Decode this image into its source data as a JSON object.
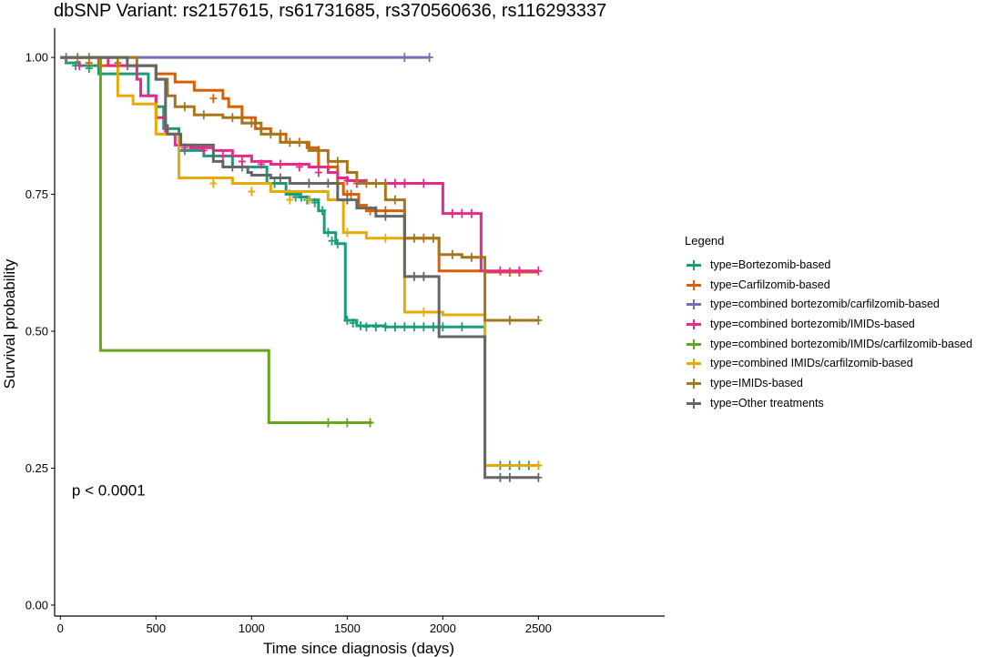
{
  "chart_data": {
    "type": "line",
    "subtype": "kaplan-meier step curves with censor marks",
    "title": "dbSNP Variant: rs2157615, rs61731685, rs370560636, rs116293337",
    "xlabel": "Time since diagnosis (days)",
    "ylabel": "Survival probability",
    "xlim": [
      -30,
      3160
    ],
    "ylim": [
      -0.02,
      1.04
    ],
    "x_ticks": [
      0,
      500,
      1000,
      1500,
      2000,
      2500
    ],
    "x_tick_labels": [
      "0",
      "500",
      "1000",
      "1500",
      "2000",
      "2500"
    ],
    "y_ticks": [
      0,
      0.25,
      0.5,
      0.75,
      1.0
    ],
    "y_tick_labels": [
      "0.00",
      "0.25",
      "0.50",
      "0.75",
      "1.00"
    ],
    "grid": false,
    "annotation": {
      "text": "p < 0.0001",
      "x": 60,
      "y": 0.2
    },
    "legend": {
      "title": "Legend",
      "position": "right"
    },
    "series": [
      {
        "name": "type=Bortezomib-based",
        "color": "#1B9E77",
        "steps": [
          [
            0,
            1.0
          ],
          [
            30,
            0.99
          ],
          [
            100,
            0.985
          ],
          [
            200,
            0.97
          ],
          [
            460,
            0.93
          ],
          [
            500,
            0.91
          ],
          [
            540,
            0.87
          ],
          [
            620,
            0.83
          ],
          [
            750,
            0.82
          ],
          [
            900,
            0.8
          ],
          [
            1080,
            0.77
          ],
          [
            1180,
            0.75
          ],
          [
            1250,
            0.745
          ],
          [
            1300,
            0.74
          ],
          [
            1350,
            0.72
          ],
          [
            1380,
            0.68
          ],
          [
            1440,
            0.66
          ],
          [
            1490,
            0.52
          ],
          [
            1550,
            0.51
          ],
          [
            1700,
            0.508
          ],
          [
            2220,
            0.255
          ]
        ],
        "censor": [
          [
            80,
            0.985
          ],
          [
            150,
            0.98
          ],
          [
            560,
            0.87
          ],
          [
            650,
            0.83
          ],
          [
            800,
            0.82
          ],
          [
            950,
            0.8
          ],
          [
            1120,
            0.77
          ],
          [
            1200,
            0.75
          ],
          [
            1230,
            0.745
          ],
          [
            1260,
            0.745
          ],
          [
            1290,
            0.74
          ],
          [
            1330,
            0.735
          ],
          [
            1370,
            0.72
          ],
          [
            1400,
            0.68
          ],
          [
            1420,
            0.665
          ],
          [
            1450,
            0.66
          ],
          [
            1500,
            0.52
          ],
          [
            1530,
            0.515
          ],
          [
            1570,
            0.51
          ],
          [
            1600,
            0.508
          ],
          [
            1650,
            0.508
          ],
          [
            1700,
            0.508
          ],
          [
            1750,
            0.508
          ],
          [
            1800,
            0.508
          ],
          [
            1850,
            0.508
          ],
          [
            1900,
            0.508
          ],
          [
            1950,
            0.508
          ],
          [
            2000,
            0.508
          ],
          [
            2100,
            0.508
          ],
          [
            2300,
            0.255
          ],
          [
            2350,
            0.255
          ],
          [
            2400,
            0.255
          ],
          [
            2450,
            0.255
          ],
          [
            2500,
            0.255
          ]
        ],
        "end": 2500
      },
      {
        "name": "type=Carfilzomib-based",
        "color": "#D95F02",
        "steps": [
          [
            0,
            1.0
          ],
          [
            200,
            0.985
          ],
          [
            500,
            0.97
          ],
          [
            600,
            0.955
          ],
          [
            700,
            0.94
          ],
          [
            850,
            0.925
          ],
          [
            880,
            0.91
          ],
          [
            950,
            0.89
          ],
          [
            1020,
            0.87
          ],
          [
            1100,
            0.86
          ],
          [
            1180,
            0.845
          ],
          [
            1290,
            0.835
          ],
          [
            1350,
            0.8
          ],
          [
            1450,
            0.77
          ],
          [
            1480,
            0.75
          ],
          [
            1560,
            0.73
          ],
          [
            1600,
            0.72
          ],
          [
            1800,
            0.67
          ],
          [
            1980,
            0.61
          ],
          [
            2220,
            0.608
          ]
        ],
        "censor": [
          [
            90,
            1.0
          ],
          [
            150,
            0.99
          ],
          [
            800,
            0.925
          ],
          [
            1050,
            0.87
          ],
          [
            1150,
            0.86
          ],
          [
            1250,
            0.845
          ],
          [
            1400,
            0.8
          ],
          [
            1500,
            0.75
          ],
          [
            1520,
            0.75
          ],
          [
            1620,
            0.72
          ],
          [
            1650,
            0.72
          ],
          [
            1700,
            0.72
          ],
          [
            1900,
            0.67
          ],
          [
            2350,
            0.608
          ],
          [
            2400,
            0.608
          ]
        ],
        "end": 2500
      },
      {
        "name": "type=combined bortezomib/carfilzomib-based",
        "color": "#7570B3",
        "steps": [
          [
            0,
            1.0
          ]
        ],
        "censor": [
          [
            30,
            1.0
          ],
          [
            1800,
            1.0
          ],
          [
            1930,
            1.0
          ]
        ],
        "end": 1930
      },
      {
        "name": "type=combined bortezomib/IMIDs-based",
        "color": "#E7298A",
        "steps": [
          [
            0,
            1.0
          ],
          [
            250,
            0.985
          ],
          [
            400,
            0.96
          ],
          [
            420,
            0.93
          ],
          [
            500,
            0.89
          ],
          [
            550,
            0.86
          ],
          [
            600,
            0.84
          ],
          [
            680,
            0.835
          ],
          [
            800,
            0.83
          ],
          [
            900,
            0.82
          ],
          [
            1000,
            0.81
          ],
          [
            1100,
            0.805
          ],
          [
            1300,
            0.8
          ],
          [
            1400,
            0.79
          ],
          [
            1450,
            0.78
          ],
          [
            1500,
            0.775
          ],
          [
            1600,
            0.77
          ],
          [
            2000,
            0.715
          ],
          [
            2200,
            0.61
          ]
        ],
        "censor": [
          [
            100,
            0.985
          ],
          [
            350,
            0.985
          ],
          [
            650,
            0.835
          ],
          [
            750,
            0.83
          ],
          [
            850,
            0.82
          ],
          [
            950,
            0.81
          ],
          [
            1050,
            0.805
          ],
          [
            1150,
            0.805
          ],
          [
            1250,
            0.8
          ],
          [
            1350,
            0.79
          ],
          [
            1500,
            0.775
          ],
          [
            1550,
            0.77
          ],
          [
            1650,
            0.77
          ],
          [
            1700,
            0.77
          ],
          [
            1750,
            0.77
          ],
          [
            1800,
            0.77
          ],
          [
            1900,
            0.77
          ],
          [
            2050,
            0.715
          ],
          [
            2100,
            0.715
          ],
          [
            2150,
            0.715
          ],
          [
            2300,
            0.61
          ],
          [
            2400,
            0.61
          ],
          [
            2500,
            0.61
          ]
        ],
        "end": 2500
      },
      {
        "name": "type=combined bortezomib/IMIDs/carfilzomib-based",
        "color": "#66A61E",
        "steps": [
          [
            0,
            1.0
          ],
          [
            210,
            0.465
          ],
          [
            1090,
            0.333
          ]
        ],
        "censor": [
          [
            1400,
            0.333
          ],
          [
            1500,
            0.333
          ],
          [
            1620,
            0.333
          ]
        ],
        "end": 1630
      },
      {
        "name": "type=combined IMIDs/carfilzomib-based",
        "color": "#E6AB02",
        "steps": [
          [
            0,
            1.0
          ],
          [
            300,
            0.93
          ],
          [
            380,
            0.915
          ],
          [
            500,
            0.86
          ],
          [
            620,
            0.78
          ],
          [
            900,
            0.77
          ],
          [
            1100,
            0.755
          ],
          [
            1400,
            0.74
          ],
          [
            1480,
            0.68
          ],
          [
            1600,
            0.67
          ],
          [
            1800,
            0.535
          ],
          [
            2000,
            0.53
          ],
          [
            2220,
            0.255
          ]
        ],
        "censor": [
          [
            800,
            0.77
          ],
          [
            1000,
            0.755
          ],
          [
            1200,
            0.74
          ],
          [
            1300,
            0.74
          ],
          [
            1500,
            0.68
          ],
          [
            1700,
            0.67
          ],
          [
            1900,
            0.535
          ],
          [
            2500,
            0.255
          ]
        ],
        "end": 2500
      },
      {
        "name": "type=IMIDs-based",
        "color": "#A6761D",
        "steps": [
          [
            0,
            1.0
          ],
          [
            400,
            0.985
          ],
          [
            500,
            0.96
          ],
          [
            560,
            0.93
          ],
          [
            600,
            0.91
          ],
          [
            700,
            0.895
          ],
          [
            850,
            0.89
          ],
          [
            950,
            0.88
          ],
          [
            1050,
            0.86
          ],
          [
            1150,
            0.845
          ],
          [
            1300,
            0.83
          ],
          [
            1400,
            0.81
          ],
          [
            1500,
            0.79
          ],
          [
            1550,
            0.77
          ],
          [
            1700,
            0.74
          ],
          [
            1800,
            0.67
          ],
          [
            1980,
            0.64
          ],
          [
            2100,
            0.635
          ],
          [
            2220,
            0.52
          ]
        ],
        "censor": [
          [
            150,
            1.0
          ],
          [
            300,
            0.99
          ],
          [
            650,
            0.91
          ],
          [
            750,
            0.895
          ],
          [
            900,
            0.89
          ],
          [
            1000,
            0.88
          ],
          [
            1100,
            0.86
          ],
          [
            1200,
            0.845
          ],
          [
            1350,
            0.83
          ],
          [
            1450,
            0.81
          ],
          [
            1600,
            0.77
          ],
          [
            1650,
            0.77
          ],
          [
            1750,
            0.74
          ],
          [
            1850,
            0.67
          ],
          [
            1950,
            0.67
          ],
          [
            2050,
            0.64
          ],
          [
            2150,
            0.635
          ],
          [
            2350,
            0.52
          ],
          [
            2500,
            0.52
          ]
        ],
        "end": 2500
      },
      {
        "name": "type=Other treatments",
        "color": "#666666",
        "steps": [
          [
            0,
            1.0
          ],
          [
            350,
            0.985
          ],
          [
            500,
            0.96
          ],
          [
            550,
            0.875
          ],
          [
            560,
            0.86
          ],
          [
            630,
            0.84
          ],
          [
            800,
            0.81
          ],
          [
            850,
            0.8
          ],
          [
            980,
            0.79
          ],
          [
            1000,
            0.785
          ],
          [
            1100,
            0.78
          ],
          [
            1200,
            0.77
          ],
          [
            1450,
            0.74
          ],
          [
            1550,
            0.725
          ],
          [
            1650,
            0.71
          ],
          [
            1800,
            0.6
          ],
          [
            1980,
            0.49
          ],
          [
            2220,
            0.233
          ]
        ],
        "censor": [
          [
            900,
            0.8
          ],
          [
            1150,
            0.78
          ],
          [
            1300,
            0.77
          ],
          [
            1400,
            0.77
          ],
          [
            1500,
            0.74
          ],
          [
            1700,
            0.71
          ],
          [
            1850,
            0.6
          ],
          [
            1900,
            0.6
          ],
          [
            2300,
            0.233
          ],
          [
            2350,
            0.233
          ],
          [
            2500,
            0.233
          ]
        ],
        "end": 2500
      }
    ]
  }
}
